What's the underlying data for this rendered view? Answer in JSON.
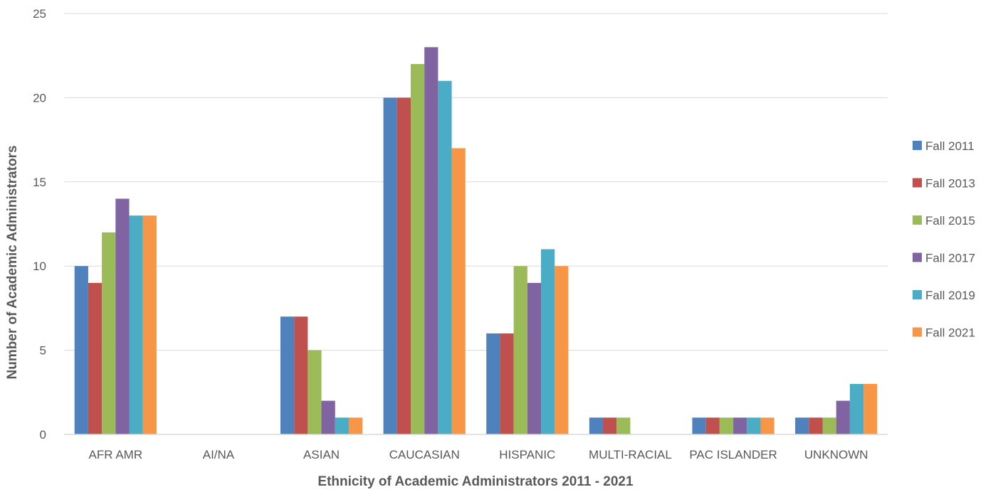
{
  "chart_data": {
    "type": "bar",
    "title": "",
    "xlabel": "Ethnicity of Academic Administrators 2011 - 2021",
    "ylabel": "Number of Academic Administrators",
    "ylim": [
      0,
      25
    ],
    "yticks": [
      0,
      5,
      10,
      15,
      20,
      25
    ],
    "grid": true,
    "legend_position": "right",
    "categories": [
      "AFR AMR",
      "AI/NA",
      "ASIAN",
      "CAUCASIAN",
      "HISPANIC",
      "MULTI-RACIAL",
      "PAC ISLANDER",
      "UNKNOWN"
    ],
    "series": [
      {
        "name": "Fall 2011",
        "color": "#4F81BD",
        "values": [
          10,
          0,
          7,
          20,
          6,
          1,
          1,
          1
        ]
      },
      {
        "name": "Fall 2013",
        "color": "#C0504D",
        "values": [
          9,
          0,
          7,
          20,
          6,
          1,
          1,
          1
        ]
      },
      {
        "name": "Fall 2015",
        "color": "#9BBB59",
        "values": [
          12,
          0,
          5,
          22,
          10,
          1,
          1,
          1
        ]
      },
      {
        "name": "Fall 2017",
        "color": "#8064A2",
        "values": [
          14,
          0,
          2,
          23,
          9,
          0,
          1,
          2
        ]
      },
      {
        "name": "Fall 2019",
        "color": "#4BACC6",
        "values": [
          13,
          0,
          1,
          21,
          11,
          0,
          1,
          3
        ]
      },
      {
        "name": "Fall 2021",
        "color": "#F79646",
        "values": [
          13,
          0,
          1,
          17,
          10,
          0,
          1,
          3
        ]
      }
    ]
  }
}
